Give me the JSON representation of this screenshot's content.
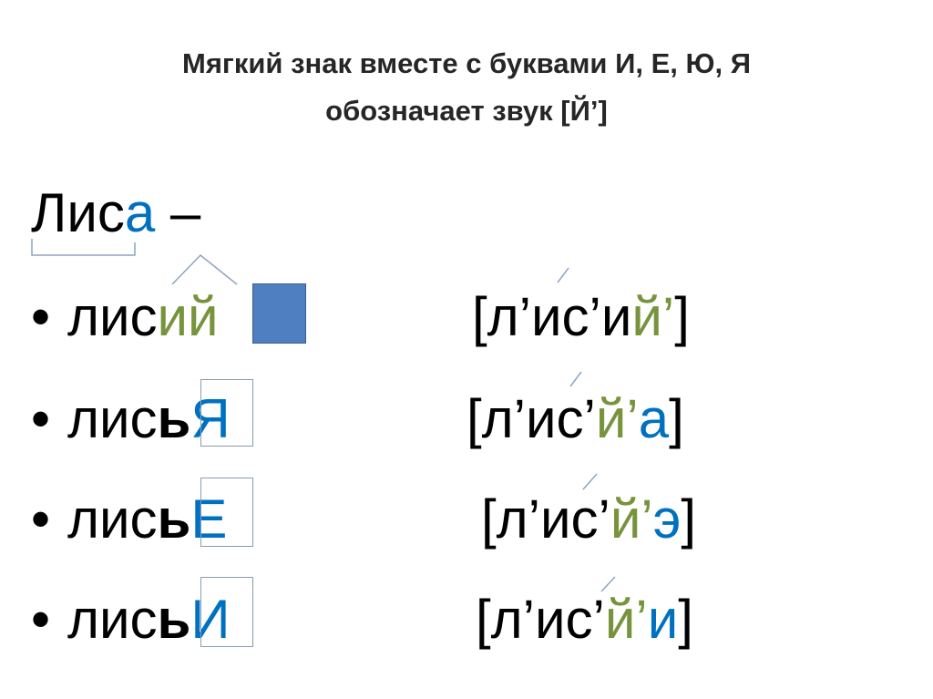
{
  "colors": {
    "black": "#000000",
    "green": "#77933c",
    "blue": "#0070c0",
    "marks": "#8ea3c4",
    "square": "#4f7fc0"
  },
  "title": {
    "line1": "Мягкий знак вместе с буквами И, Е, Ю, Я",
    "line2": "обозначает звук [Й’]"
  },
  "heading": {
    "segments": [
      {
        "text": "Лис",
        "color": "black"
      },
      {
        "text": "а",
        "color": "blue"
      },
      {
        "text": " –",
        "color": "black"
      }
    ]
  },
  "rows": [
    {
      "bullet": "•",
      "word": [
        {
          "text": "лис",
          "color": "black"
        },
        {
          "text": "ий",
          "color": "green"
        }
      ],
      "transcription": [
        {
          "text": "[л’ис’и",
          "color": "black"
        },
        {
          "text": "й’",
          "color": "green"
        },
        {
          "text": "]",
          "color": "black"
        }
      ]
    },
    {
      "bullet": "•",
      "word": [
        {
          "text": "лис",
          "color": "black"
        },
        {
          "text": "ь",
          "color": "black",
          "bold": true
        },
        {
          "text": "Я",
          "color": "blue"
        }
      ],
      "transcription": [
        {
          "text": "[л’ис’",
          "color": "black"
        },
        {
          "text": "й’",
          "color": "green"
        },
        {
          "text": "а",
          "color": "blue"
        },
        {
          "text": "]",
          "color": "black"
        }
      ]
    },
    {
      "bullet": "•",
      "word": [
        {
          "text": "лис",
          "color": "black"
        },
        {
          "text": "ь",
          "color": "black",
          "bold": true
        },
        {
          "text": "Е",
          "color": "blue"
        }
      ],
      "transcription": [
        {
          "text": "[л’ис’",
          "color": "black"
        },
        {
          "text": "й’",
          "color": "green"
        },
        {
          "text": "э",
          "color": "blue"
        },
        {
          "text": "]",
          "color": "black"
        }
      ]
    },
    {
      "bullet": "•",
      "word": [
        {
          "text": "лис",
          "color": "black"
        },
        {
          "text": "ь",
          "color": "black",
          "bold": true
        },
        {
          "text": "И",
          "color": "blue"
        }
      ],
      "transcription": [
        {
          "text": "[л’ис’",
          "color": "black"
        },
        {
          "text": "й’",
          "color": "green"
        },
        {
          "text": "и",
          "color": "blue"
        },
        {
          "text": "]",
          "color": "black"
        }
      ]
    }
  ]
}
